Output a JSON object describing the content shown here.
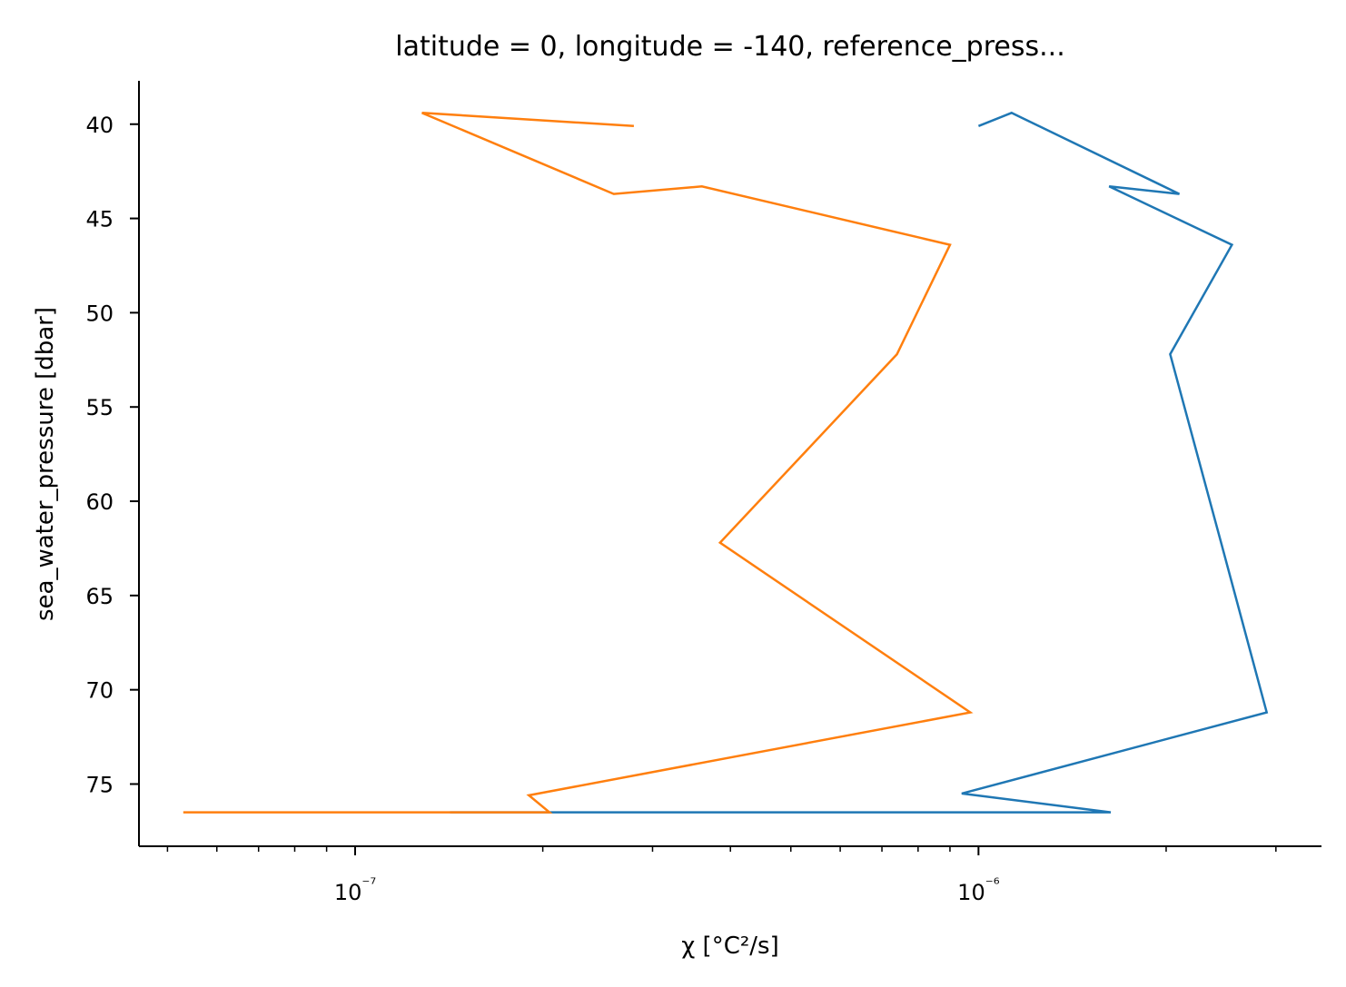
{
  "chart_data": {
    "type": "line",
    "title": "latitude = 0, longitude = -140, reference_press...",
    "xlabel": "χ [°C²/s]",
    "ylabel": "sea_water_pressure [dbar]",
    "xscale": "log",
    "xlim": [
      4.5e-08,
      3.55e-06
    ],
    "ylim": [
      78.3,
      37.7
    ],
    "y_inverted": true,
    "grid": false,
    "legend": "none",
    "x_major_ticks": [
      {
        "value": 1e-07,
        "label": "10⁻⁷"
      },
      {
        "value": 1e-06,
        "label": "10⁻⁶"
      }
    ],
    "x_minor_ticks": [
      5e-08,
      6e-08,
      7e-08,
      8e-08,
      9e-08,
      2e-07,
      3e-07,
      4e-07,
      5e-07,
      6e-07,
      7e-07,
      8e-07,
      9e-07,
      2e-06,
      3e-06
    ],
    "y_ticks": [
      {
        "value": 40,
        "label": "40"
      },
      {
        "value": 45,
        "label": "45"
      },
      {
        "value": 50,
        "label": "50"
      },
      {
        "value": 55,
        "label": "55"
      },
      {
        "value": 60,
        "label": "60"
      },
      {
        "value": 65,
        "label": "65"
      },
      {
        "value": 70,
        "label": "70"
      },
      {
        "value": 75,
        "label": "75"
      }
    ],
    "series": [
      {
        "color": "#1f77b4",
        "points": [
          {
            "x": 1e-06,
            "y": 40.1
          },
          {
            "x": 1.13e-06,
            "y": 39.4
          },
          {
            "x": 2.1e-06,
            "y": 43.7
          },
          {
            "x": 1.62e-06,
            "y": 43.3
          },
          {
            "x": 2.55e-06,
            "y": 46.4
          },
          {
            "x": 2.03e-06,
            "y": 52.2
          },
          {
            "x": 2.45e-06,
            "y": 62.2
          },
          {
            "x": 2.9e-06,
            "y": 71.2
          },
          {
            "x": 9.4e-07,
            "y": 75.5
          },
          {
            "x": 1.63e-06,
            "y": 76.5
          },
          {
            "x": 1.42e-07,
            "y": 76.5
          }
        ]
      },
      {
        "color": "#ff7f0e",
        "points": [
          {
            "x": 2.8e-07,
            "y": 40.1
          },
          {
            "x": 1.28e-07,
            "y": 39.4
          },
          {
            "x": 2.6e-07,
            "y": 43.7
          },
          {
            "x": 3.6e-07,
            "y": 43.3
          },
          {
            "x": 9e-07,
            "y": 46.4
          },
          {
            "x": 7.4e-07,
            "y": 52.2
          },
          {
            "x": 3.85e-07,
            "y": 62.2
          },
          {
            "x": 9.7e-07,
            "y": 71.2
          },
          {
            "x": 1.9e-07,
            "y": 75.6
          },
          {
            "x": 2.05e-07,
            "y": 76.5
          },
          {
            "x": 5.3e-08,
            "y": 76.5
          }
        ]
      }
    ]
  }
}
